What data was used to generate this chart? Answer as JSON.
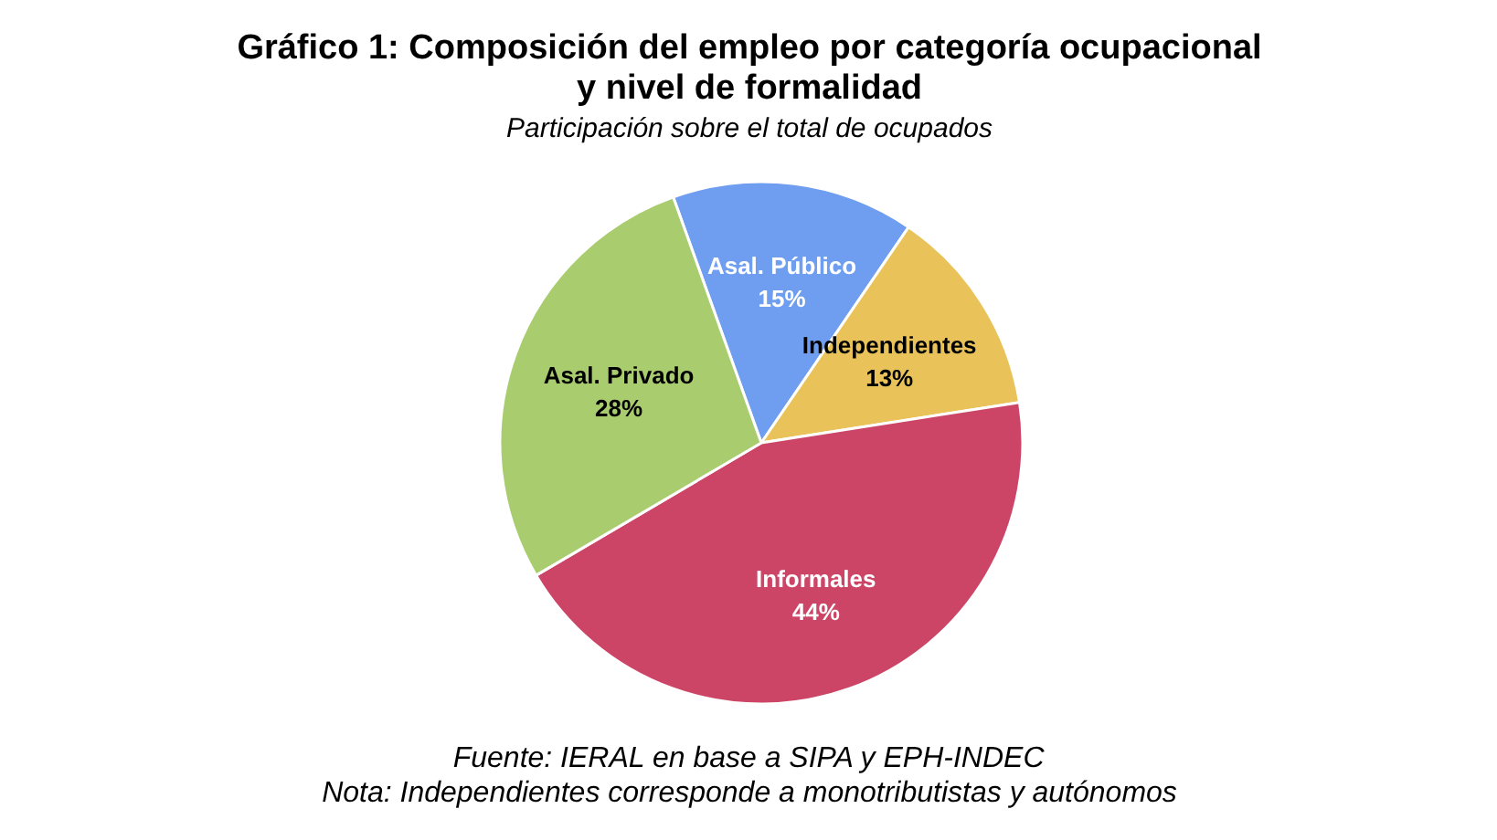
{
  "chart_data": {
    "type": "pie",
    "title": "Gráfico 1: Composición del empleo por categoría ocupacional\ny nivel de formalidad",
    "subtitle": "Participación sobre el total de ocupados",
    "categories": [
      "Asal. Público",
      "Independientes",
      "Informales",
      "Asal. Privado"
    ],
    "values": [
      15,
      13,
      44,
      28
    ],
    "colors": [
      "#6f9ef0",
      "#e9c35a",
      "#cc4566",
      "#a8cc6e"
    ],
    "value_labels": [
      "15%",
      "13%",
      "44%",
      "28%"
    ],
    "annotations": [
      "Fuente: IERAL en base a SIPA y EPH-INDEC",
      "Nota: Independientes corresponde a monotributistas y autónomos"
    ]
  }
}
